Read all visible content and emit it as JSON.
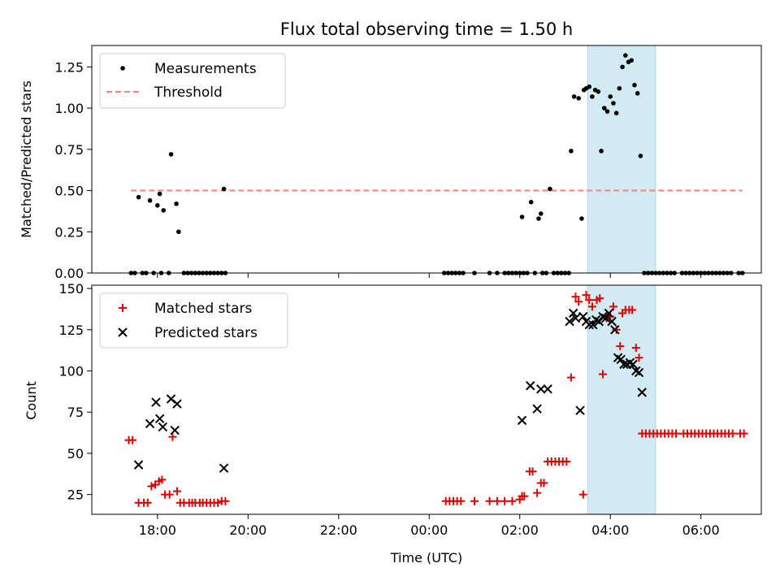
{
  "figure": {
    "title": "Flux total observing time = 1.50 h"
  },
  "colors": {
    "measurement": "#000000",
    "threshold": "#ff7f7f",
    "matched": "#e00000",
    "predicted": "#000000",
    "span": "#add8e6"
  },
  "chart_data": [
    {
      "panel": "top",
      "type": "scatter",
      "xlabel": "",
      "ylabel": "Matched/Predicted stars",
      "x_tick_labels": [],
      "ylim": [
        0,
        1.38
      ],
      "yticks": [
        "0.00",
        "0.25",
        "0.50",
        "0.75",
        "1.00",
        "1.25"
      ],
      "legend": {
        "placement": "top-left",
        "entries": [
          "Measurements",
          "Threshold"
        ]
      },
      "highlight_span": {
        "x_start": "03:30",
        "x_end": "05:00"
      },
      "threshold": {
        "name": "Threshold",
        "x_start": "17:25",
        "x_end": "06:55",
        "y": 0.5
      },
      "series": [
        {
          "name": "Measurements",
          "marker": "dot",
          "points": [
            [
              "17:25",
              0
            ],
            [
              "17:30",
              0
            ],
            [
              "17:35",
              0.46
            ],
            [
              "17:40",
              0
            ],
            [
              "17:45",
              0
            ],
            [
              "17:50",
              0.44
            ],
            [
              "17:55",
              0
            ],
            [
              "18:00",
              0.41
            ],
            [
              "18:03",
              0.48
            ],
            [
              "18:05",
              0
            ],
            [
              "18:08",
              0.38
            ],
            [
              "18:15",
              0
            ],
            [
              "18:18",
              0.72
            ],
            [
              "18:25",
              0.42
            ],
            [
              "18:28",
              0.25
            ],
            [
              "18:35",
              0
            ],
            [
              "18:40",
              0
            ],
            [
              "18:45",
              0
            ],
            [
              "18:50",
              0
            ],
            [
              "18:55",
              0
            ],
            [
              "19:00",
              0
            ],
            [
              "19:05",
              0
            ],
            [
              "19:10",
              0
            ],
            [
              "19:15",
              0
            ],
            [
              "19:20",
              0
            ],
            [
              "19:25",
              0
            ],
            [
              "19:28",
              0.51
            ],
            [
              "19:30",
              0
            ],
            [
              "00:20",
              0
            ],
            [
              "00:25",
              0
            ],
            [
              "00:30",
              0
            ],
            [
              "00:35",
              0
            ],
            [
              "00:40",
              0
            ],
            [
              "00:45",
              0
            ],
            [
              "01:00",
              0
            ],
            [
              "01:20",
              0
            ],
            [
              "01:30",
              0
            ],
            [
              "01:40",
              0
            ],
            [
              "01:45",
              0
            ],
            [
              "01:50",
              0
            ],
            [
              "01:55",
              0
            ],
            [
              "02:00",
              0
            ],
            [
              "02:03",
              0.34
            ],
            [
              "02:05",
              0
            ],
            [
              "02:10",
              0
            ],
            [
              "02:15",
              0.43
            ],
            [
              "02:20",
              0
            ],
            [
              "02:25",
              0.33
            ],
            [
              "02:28",
              0.36
            ],
            [
              "02:30",
              0
            ],
            [
              "02:35",
              0
            ],
            [
              "02:40",
              0.51
            ],
            [
              "02:45",
              0
            ],
            [
              "02:50",
              0
            ],
            [
              "02:55",
              0
            ],
            [
              "03:00",
              0
            ],
            [
              "03:05",
              0
            ],
            [
              "03:08",
              0.74
            ],
            [
              "03:12",
              1.07
            ],
            [
              "03:18",
              1.06
            ],
            [
              "03:22",
              0.33
            ],
            [
              "03:25",
              1.11
            ],
            [
              "03:28",
              1.12
            ],
            [
              "03:32",
              1.13
            ],
            [
              "03:36",
              1.07
            ],
            [
              "03:40",
              1.11
            ],
            [
              "03:44",
              1.1
            ],
            [
              "03:48",
              0.74
            ],
            [
              "03:52",
              1.0
            ],
            [
              "03:56",
              0.98
            ],
            [
              "04:00",
              1.07
            ],
            [
              "04:04",
              1.03
            ],
            [
              "04:08",
              0.97
            ],
            [
              "04:12",
              1.12
            ],
            [
              "04:16",
              1.25
            ],
            [
              "04:20",
              1.32
            ],
            [
              "04:24",
              1.28
            ],
            [
              "04:28",
              1.29
            ],
            [
              "04:32",
              1.14
            ],
            [
              "04:36",
              1.09
            ],
            [
              "04:40",
              0.71
            ],
            [
              "04:45",
              0
            ],
            [
              "04:50",
              0
            ],
            [
              "04:55",
              0
            ],
            [
              "05:00",
              0
            ],
            [
              "05:05",
              0
            ],
            [
              "05:10",
              0
            ],
            [
              "05:15",
              0
            ],
            [
              "05:20",
              0
            ],
            [
              "05:25",
              0
            ],
            [
              "05:35",
              0
            ],
            [
              "05:40",
              0
            ],
            [
              "05:45",
              0
            ],
            [
              "05:50",
              0
            ],
            [
              "05:55",
              0
            ],
            [
              "06:00",
              0
            ],
            [
              "06:05",
              0
            ],
            [
              "06:10",
              0
            ],
            [
              "06:15",
              0
            ],
            [
              "06:20",
              0
            ],
            [
              "06:25",
              0
            ],
            [
              "06:30",
              0
            ],
            [
              "06:35",
              0
            ],
            [
              "06:40",
              0
            ],
            [
              "06:50",
              0
            ],
            [
              "06:55",
              0
            ]
          ]
        }
      ]
    },
    {
      "panel": "bottom",
      "type": "scatter",
      "xlabel": "Time (UTC)",
      "ylabel": "Count",
      "x_tick_labels": [
        "18:00",
        "20:00",
        "22:00",
        "00:00",
        "02:00",
        "04:00",
        "06:00"
      ],
      "ylim": [
        13,
        152
      ],
      "yticks": [
        "25",
        "50",
        "75",
        "100",
        "125",
        "150"
      ],
      "legend": {
        "placement": "top-left",
        "entries": [
          "Matched stars",
          "Predicted stars"
        ]
      },
      "highlight_span": {
        "x_start": "03:30",
        "x_end": "05:00"
      },
      "series": [
        {
          "name": "Matched stars",
          "marker": "plus",
          "points": [
            [
              "17:22",
              58
            ],
            [
              "17:27",
              58
            ],
            [
              "17:35",
              20
            ],
            [
              "17:42",
              20
            ],
            [
              "17:47",
              20
            ],
            [
              "17:52",
              30
            ],
            [
              "17:57",
              31
            ],
            [
              "18:02",
              33
            ],
            [
              "18:06",
              34
            ],
            [
              "18:10",
              25
            ],
            [
              "18:16",
              25
            ],
            [
              "18:20",
              60
            ],
            [
              "18:26",
              27
            ],
            [
              "18:30",
              20
            ],
            [
              "18:35",
              20
            ],
            [
              "18:42",
              20
            ],
            [
              "18:46",
              20
            ],
            [
              "18:50",
              20
            ],
            [
              "18:56",
              20
            ],
            [
              "19:00",
              20
            ],
            [
              "19:05",
              20
            ],
            [
              "19:10",
              20
            ],
            [
              "19:15",
              20
            ],
            [
              "19:20",
              20
            ],
            [
              "19:25",
              21
            ],
            [
              "19:30",
              21
            ],
            [
              "00:22",
              21
            ],
            [
              "00:27",
              21
            ],
            [
              "00:32",
              21
            ],
            [
              "00:37",
              21
            ],
            [
              "00:42",
              21
            ],
            [
              "01:00",
              21
            ],
            [
              "01:20",
              21
            ],
            [
              "01:30",
              21
            ],
            [
              "01:40",
              21
            ],
            [
              "01:50",
              21
            ],
            [
              "02:00",
              22
            ],
            [
              "02:03",
              24
            ],
            [
              "02:06",
              24
            ],
            [
              "02:13",
              39
            ],
            [
              "02:17",
              39
            ],
            [
              "02:23",
              26
            ],
            [
              "02:28",
              32
            ],
            [
              "02:32",
              32
            ],
            [
              "02:37",
              45
            ],
            [
              "02:42",
              45
            ],
            [
              "02:47",
              45
            ],
            [
              "02:52",
              45
            ],
            [
              "02:57",
              45
            ],
            [
              "03:02",
              45
            ],
            [
              "03:08",
              96
            ],
            [
              "03:14",
              145
            ],
            [
              "03:18",
              142
            ],
            [
              "03:24",
              25
            ],
            [
              "03:28",
              146
            ],
            [
              "03:32",
              143
            ],
            [
              "03:36",
              139
            ],
            [
              "03:42",
              143
            ],
            [
              "03:46",
              144
            ],
            [
              "03:50",
              98
            ],
            [
              "03:55",
              132
            ],
            [
              "04:00",
              133
            ],
            [
              "04:04",
              139
            ],
            [
              "04:08",
              125
            ],
            [
              "04:13",
              115
            ],
            [
              "04:16",
              135
            ],
            [
              "04:20",
              137
            ],
            [
              "04:25",
              137
            ],
            [
              "04:29",
              137
            ],
            [
              "04:34",
              114
            ],
            [
              "04:38",
              108
            ],
            [
              "04:42",
              62
            ],
            [
              "04:47",
              62
            ],
            [
              "04:52",
              62
            ],
            [
              "04:57",
              62
            ],
            [
              "05:02",
              62
            ],
            [
              "05:07",
              62
            ],
            [
              "05:12",
              62
            ],
            [
              "05:17",
              62
            ],
            [
              "05:22",
              62
            ],
            [
              "05:27",
              62
            ],
            [
              "05:37",
              62
            ],
            [
              "05:42",
              62
            ],
            [
              "05:47",
              62
            ],
            [
              "05:52",
              62
            ],
            [
              "05:57",
              62
            ],
            [
              "06:02",
              62
            ],
            [
              "06:07",
              62
            ],
            [
              "06:12",
              62
            ],
            [
              "06:17",
              62
            ],
            [
              "06:22",
              62
            ],
            [
              "06:27",
              62
            ],
            [
              "06:32",
              62
            ],
            [
              "06:37",
              62
            ],
            [
              "06:42",
              62
            ],
            [
              "06:52",
              62
            ],
            [
              "06:57",
              62
            ]
          ]
        },
        {
          "name": "Predicted stars",
          "marker": "x",
          "points": [
            [
              "17:35",
              43
            ],
            [
              "17:50",
              68
            ],
            [
              "17:58",
              81
            ],
            [
              "18:03",
              71
            ],
            [
              "18:07",
              66
            ],
            [
              "18:18",
              83
            ],
            [
              "18:23",
              64
            ],
            [
              "18:26",
              80
            ],
            [
              "19:28",
              41
            ],
            [
              "02:03",
              70
            ],
            [
              "02:14",
              91
            ],
            [
              "02:23",
              77
            ],
            [
              "02:28",
              89
            ],
            [
              "02:37",
              89
            ],
            [
              "03:06",
              130
            ],
            [
              "03:11",
              135
            ],
            [
              "03:14",
              132
            ],
            [
              "03:20",
              76
            ],
            [
              "03:24",
              133
            ],
            [
              "03:28",
              130
            ],
            [
              "03:32",
              128
            ],
            [
              "03:37",
              128
            ],
            [
              "03:41",
              131
            ],
            [
              "03:45",
              130
            ],
            [
              "03:50",
              133
            ],
            [
              "03:54",
              132
            ],
            [
              "03:58",
              135
            ],
            [
              "04:02",
              130
            ],
            [
              "04:06",
              125
            ],
            [
              "04:10",
              108
            ],
            [
              "04:14",
              107
            ],
            [
              "04:18",
              104
            ],
            [
              "04:22",
              104
            ],
            [
              "04:26",
              105
            ],
            [
              "04:30",
              104
            ],
            [
              "04:34",
              100
            ],
            [
              "04:38",
              99
            ],
            [
              "04:42",
              87
            ]
          ]
        }
      ]
    }
  ]
}
